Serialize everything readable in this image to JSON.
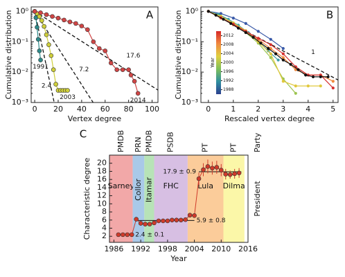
{
  "chart_data": [
    {
      "type": "line",
      "panel_label": "A",
      "xlabel": "Vertex degree",
      "ylabel": "Cumulative distribution",
      "log_y": true,
      "xlim": [
        -3,
        105
      ],
      "ylim": [
        0.001,
        1.4
      ],
      "xticks": [
        0,
        20,
        40,
        60,
        80,
        100
      ],
      "yticks": [
        {
          "value": 0.001,
          "label": "10⁻³"
        },
        {
          "value": 0.01,
          "label": "10⁻²"
        },
        {
          "value": 0.1,
          "label": "10⁻¹"
        },
        {
          "value": 1,
          "label": "10⁰"
        }
      ],
      "fits": [
        2.4,
        7.2,
        17.6
      ],
      "series": [
        {
          "name": "1991",
          "color": "#2e8b8b",
          "x": [
            0,
            1,
            2,
            3,
            4,
            5
          ],
          "values": [
            1,
            0.62,
            0.3,
            0.12,
            0.05,
            0.025
          ]
        },
        {
          "name": "2003",
          "color": "#cfcf3a",
          "x": [
            0,
            2,
            4,
            6,
            8,
            10,
            12,
            14,
            16,
            18,
            20,
            22,
            24,
            26,
            28
          ],
          "values": [
            1,
            0.85,
            0.68,
            0.5,
            0.32,
            0.17,
            0.08,
            0.035,
            0.012,
            0.004,
            0.0025,
            0.0025,
            0.0025,
            0.0025,
            0.0025
          ]
        },
        {
          "name": "2014",
          "color": "#d04545",
          "x": [
            0,
            5,
            10,
            15,
            20,
            25,
            30,
            35,
            40,
            45,
            50,
            55,
            60,
            65,
            70,
            75,
            80,
            82,
            85,
            88
          ],
          "values": [
            1,
            0.9,
            0.78,
            0.68,
            0.6,
            0.52,
            0.45,
            0.4,
            0.33,
            0.25,
            0.1,
            0.06,
            0.05,
            0.02,
            0.012,
            0.012,
            0.012,
            0.008,
            0.005,
            0.002
          ]
        }
      ]
    },
    {
      "type": "line",
      "panel_label": "B",
      "xlabel": "Rescaled vertex degree",
      "ylabel": "Cumulative distribution",
      "log_y": true,
      "xlim": [
        -0.3,
        5.2
      ],
      "ylim": [
        0.001,
        1.4
      ],
      "xticks": [
        0,
        1,
        2,
        3,
        4,
        5
      ],
      "yticks": [
        {
          "value": 0.001,
          "label": "10⁻³"
        },
        {
          "value": 0.01,
          "label": "10⁻²"
        },
        {
          "value": 0.1,
          "label": "10⁻¹"
        },
        {
          "value": 1,
          "label": "10⁰"
        }
      ],
      "fits": [
        1
      ],
      "colorbar": {
        "label": "Year",
        "lim": [
          1986,
          2014
        ],
        "ticks": [
          1988,
          1992,
          1996,
          2000,
          2004,
          2008,
          2012
        ],
        "colors": [
          "#2b3f8f",
          "#2f8fa0",
          "#7fbf5a",
          "#e0d040",
          "#f08a40",
          "#d62828"
        ]
      },
      "series": [
        {
          "color": "#3a5aa8",
          "x": [
            0,
            0.5,
            1,
            1.5,
            2,
            2.5,
            3
          ],
          "values": [
            1,
            0.85,
            0.6,
            0.4,
            0.22,
            0.12,
            0.06
          ]
        },
        {
          "color": "#3d9ea6",
          "x": [
            0,
            0.4,
            0.8,
            1.2,
            1.6,
            2,
            2.4,
            2.8
          ],
          "values": [
            1,
            0.8,
            0.55,
            0.35,
            0.2,
            0.1,
            0.05,
            0.025
          ]
        },
        {
          "color": "#9cc450",
          "x": [
            0,
            0.5,
            1,
            1.5,
            2,
            2.5,
            3,
            3.5
          ],
          "values": [
            1,
            0.7,
            0.4,
            0.2,
            0.09,
            0.03,
            0.006,
            0.002
          ]
        },
        {
          "color": "#e0c83c",
          "x": [
            0,
            0.5,
            1,
            1.5,
            2,
            2.5,
            3,
            3.5,
            4,
            4.5
          ],
          "values": [
            1,
            0.68,
            0.42,
            0.23,
            0.1,
            0.04,
            0.005,
            0.0035,
            0.0035,
            0.0035
          ]
        },
        {
          "color": "#f0883c",
          "x": [
            0,
            0.5,
            1,
            1.5,
            2,
            2.5,
            3,
            3.5,
            4,
            4.5,
            5
          ],
          "values": [
            1,
            0.6,
            0.36,
            0.2,
            0.12,
            0.06,
            0.03,
            0.012,
            0.008,
            0.008,
            0.005
          ]
        },
        {
          "color": "#d63030",
          "x": [
            0,
            0.5,
            1,
            1.5,
            2,
            2.5,
            3,
            3.5,
            4,
            4.5,
            5
          ],
          "values": [
            1,
            0.62,
            0.38,
            0.22,
            0.13,
            0.08,
            0.04,
            0.015,
            0.008,
            0.008,
            0.003
          ]
        },
        {
          "color": "#111111",
          "x": [
            0,
            0.3,
            0.6,
            0.9,
            1.2,
            1.5,
            1.8,
            2.1,
            2.4,
            2.7,
            3.0,
            3.3,
            3.6,
            3.9,
            4.2,
            4.5,
            4.8
          ],
          "values": [
            1,
            0.75,
            0.55,
            0.4,
            0.28,
            0.2,
            0.14,
            0.09,
            0.06,
            0.04,
            0.025,
            0.018,
            0.012,
            0.008,
            0.007,
            0.007,
            0.007
          ]
        }
      ]
    },
    {
      "type": "errorbar",
      "panel_label": "C",
      "xlabel": "Year",
      "ylabel": "Characteristic degree",
      "right_label": "President",
      "top_label": "Party",
      "xlim": [
        1985,
        2016
      ],
      "ylim": [
        0.5,
        22
      ],
      "xticks": [
        1986,
        1992,
        1998,
        2004,
        2010,
        2016
      ],
      "yticks": [
        2,
        4,
        6,
        8,
        10,
        12,
        14,
        16,
        18,
        20
      ],
      "regions": [
        {
          "name": "Sarney",
          "party": "PMDB",
          "start": 1985,
          "end": 1990.2,
          "color": "#f2a8a8"
        },
        {
          "name": "Collor",
          "party": "PRN",
          "start": 1990.2,
          "end": 1992.8,
          "color": "#a9c9e8"
        },
        {
          "name": "Itamar",
          "party": "PMDB",
          "start": 1992.8,
          "end": 1995,
          "color": "#b7e3b7"
        },
        {
          "name": "FHC",
          "party": "PSDB",
          "start": 1995,
          "end": 2002.5,
          "color": "#d7bfe3"
        },
        {
          "name": "Lula",
          "party": "PT",
          "start": 2002.5,
          "end": 2010.5,
          "color": "#fbcc9a"
        },
        {
          "name": "Dilma",
          "party": "PT",
          "start": 2010.5,
          "end": 2015.2,
          "color": "#fbf7a8"
        }
      ],
      "levels": [
        {
          "value": 2.4,
          "error": 0.1,
          "label": "2.4 ± 0.1",
          "start": 1987,
          "end": 1990.3
        },
        {
          "value": 5.9,
          "error": 0.8,
          "label": "5.9 ± 0.8",
          "start": 1991,
          "end": 2004
        },
        {
          "value": 17.9,
          "error": 0.9,
          "label": "17.9 ± 0.9",
          "start": 2005,
          "end": 2014.5
        }
      ],
      "series": [
        {
          "color": "#d03a2a",
          "x": [
            1987,
            1988,
            1989,
            1990,
            1991,
            1992,
            1993,
            1994,
            1995,
            1996,
            1997,
            1998,
            1999,
            2000,
            2001,
            2002,
            2003,
            2004,
            2005,
            2006,
            2007,
            2008,
            2009,
            2010,
            2011,
            2012,
            2013,
            2014
          ],
          "values": [
            2.4,
            2.4,
            2.4,
            2.4,
            6.2,
            5.2,
            5.0,
            5.0,
            5.3,
            5.8,
            5.8,
            5.8,
            6.0,
            6.0,
            6.0,
            6.1,
            7.2,
            7.1,
            16.2,
            18.4,
            19.2,
            18.8,
            19.0,
            18.3,
            17.3,
            17.2,
            17.4,
            17.6
          ],
          "errors": [
            0.1,
            0.1,
            0.1,
            0.1,
            0.5,
            0.6,
            0.6,
            0.5,
            0.4,
            0.5,
            0.5,
            0.5,
            0.5,
            0.6,
            0.5,
            0.5,
            0.4,
            0.5,
            1.5,
            1.6,
            1.7,
            1.6,
            1.6,
            1.5,
            1.3,
            1.0,
            1.2,
            1.2
          ]
        }
      ]
    }
  ]
}
